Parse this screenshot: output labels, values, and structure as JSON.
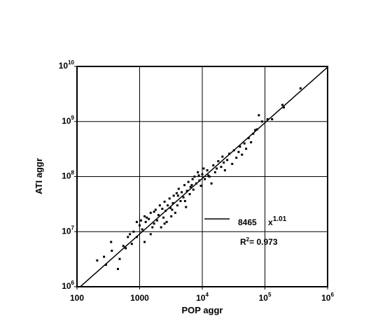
{
  "chart_data": {
    "type": "scatter",
    "xlabel": "POP aggr",
    "ylabel": "ATI aggr",
    "log_x": true,
    "log_y": true,
    "grid": true,
    "color": "#000000",
    "xlim": [
      100,
      1000000
    ],
    "ylim": [
      1000000,
      10000000000
    ],
    "xticks": [
      100,
      1000,
      {
        "value": 10000,
        "label": "10",
        "power": "4"
      },
      {
        "value": 100000,
        "label": "10",
        "power": "5"
      },
      {
        "value": 1000000,
        "label": "10",
        "power": "6"
      }
    ],
    "yticks": [
      {
        "value": 1000000,
        "label": "10",
        "power": "6"
      },
      {
        "value": 10000000,
        "label": "10",
        "power": "7"
      },
      {
        "value": 100000000,
        "label": "10",
        "power": "8"
      },
      {
        "value": 1000000000,
        "label": "10",
        "power": "9"
      },
      {
        "value": 10000000000,
        "label": "10",
        "power": "10"
      }
    ],
    "fit": {
      "coefficient": 8465,
      "variable": "x",
      "exponent": 1.01
    },
    "r2_label": {
      "symbol": "R",
      "power": "2",
      "text": "= 0.973"
    },
    "x": [
      210,
      270,
      290,
      350,
      360,
      450,
      480,
      550,
      600,
      650,
      700,
      750,
      800,
      900,
      1000,
      1050,
      1100,
      1200,
      1250,
      1300,
      1400,
      1500,
      1500,
      1600,
      1700,
      1800,
      1900,
      2000,
      2100,
      2200,
      2300,
      2400,
      2500,
      2600,
      2700,
      2800,
      3000,
      3100,
      3200,
      3400,
      3500,
      3700,
      3900,
      4000,
      4200,
      4500,
      4700,
      5000,
      5200,
      5500,
      5700,
      6000,
      6300,
      6500,
      7000,
      7200,
      7500,
      8000,
      8500,
      9000,
      9500,
      10000,
      10500,
      11000,
      12000,
      13000,
      14000,
      15000,
      16000,
      18000,
      20000,
      21000,
      23000,
      25000,
      27000,
      30000,
      32000,
      35000,
      38000,
      40000,
      43000,
      47000,
      50000,
      55000,
      60000,
      65000,
      70000,
      75000,
      80000,
      90000,
      110000,
      130000,
      190000,
      200000,
      370000,
      900,
      1200,
      1700,
      2500,
      3300,
      4100,
      5300,
      6800,
      8800,
      12500,
      17000,
      22000
    ],
    "values": [
      3000000,
      3500000,
      2500000,
      6500000,
      4500000,
      2100000,
      3200000,
      5500000,
      5000000,
      8000000,
      9000000,
      6000000,
      10000000,
      8000000,
      13000000,
      16000000,
      11000000,
      6500000,
      15000000,
      18000000,
      17000000,
      9000000,
      22000000,
      12000000,
      14000000,
      25000000,
      16000000,
      20000000,
      30000000,
      12000000,
      26000000,
      18000000,
      35000000,
      24000000,
      15000000,
      30000000,
      40000000,
      27000000,
      19000000,
      33000000,
      45000000,
      22000000,
      50000000,
      30000000,
      60000000,
      36000000,
      52000000,
      42000000,
      70000000,
      28000000,
      55000000,
      80000000,
      48000000,
      65000000,
      90000000,
      58000000,
      100000000,
      75000000,
      120000000,
      85000000,
      68000000,
      110000000,
      140000000,
      90000000,
      130000000,
      100000000,
      75000000,
      160000000,
      120000000,
      190000000,
      150000000,
      230000000,
      130000000,
      200000000,
      260000000,
      170000000,
      300000000,
      220000000,
      280000000,
      350000000,
      250000000,
      400000000,
      320000000,
      500000000,
      420000000,
      600000000,
      700000000,
      720000000,
      1300000000,
      1000000000,
      1100000000,
      1100000000,
      2000000000,
      1800000000,
      4000000000,
      15000000,
      19000000,
      23000000,
      14000000,
      25000000,
      45000000,
      36000000,
      70000000,
      105000000,
      105000000,
      140000000,
      180000000
    ]
  }
}
